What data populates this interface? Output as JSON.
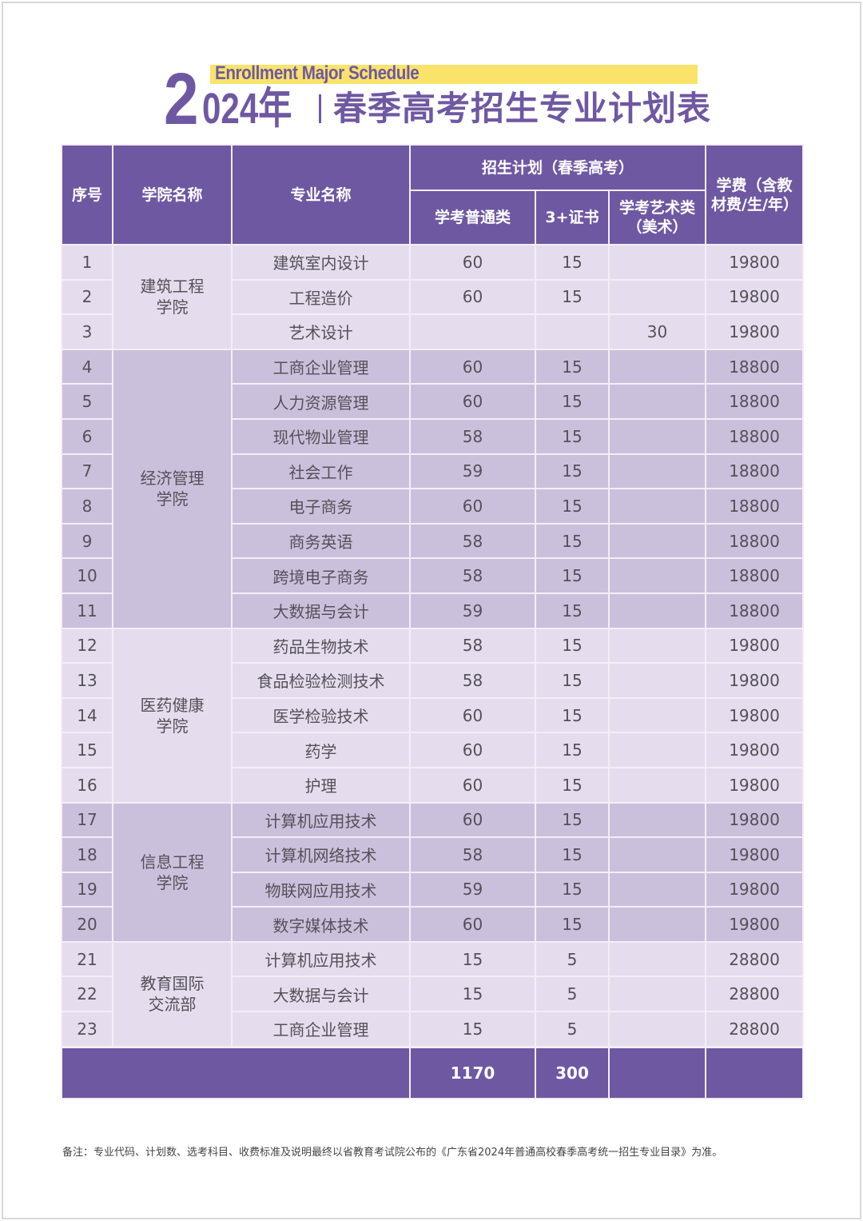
{
  "title": {
    "english": "Enrollment Major Schedule",
    "year_first_digit": "2",
    "year_rest": "024年",
    "chinese": "春季高考招生专业计划表"
  },
  "colors": {
    "primary_purple": "#6f58a2",
    "light_row": "#e5dded",
    "dark_row": "#cbc0dc",
    "yellow_bar": "#f9e36a"
  },
  "table": {
    "headers": {
      "index": "序号",
      "college": "学院名称",
      "major": "专业名称",
      "plan_group": "招生计划（春季高考）",
      "regular": "学考普通类",
      "cert": "3+证书",
      "art": "学考艺术类（美术）",
      "tuition": "学费（含教材费/生/年）"
    },
    "colleges": [
      {
        "name": "建筑工程学院",
        "rows": [
          {
            "no": "1",
            "major": "建筑室内设计",
            "regular": "60",
            "cert": "15",
            "art": "",
            "tuition": "19800"
          },
          {
            "no": "2",
            "major": "工程造价",
            "regular": "60",
            "cert": "15",
            "art": "",
            "tuition": "19800"
          },
          {
            "no": "3",
            "major": "艺术设计",
            "regular": "",
            "cert": "",
            "art": "30",
            "tuition": "19800"
          }
        ]
      },
      {
        "name": "经济管理学院",
        "rows": [
          {
            "no": "4",
            "major": "工商企业管理",
            "regular": "60",
            "cert": "15",
            "art": "",
            "tuition": "18800"
          },
          {
            "no": "5",
            "major": "人力资源管理",
            "regular": "60",
            "cert": "15",
            "art": "",
            "tuition": "18800"
          },
          {
            "no": "6",
            "major": "现代物业管理",
            "regular": "58",
            "cert": "15",
            "art": "",
            "tuition": "18800"
          },
          {
            "no": "7",
            "major": "社会工作",
            "regular": "59",
            "cert": "15",
            "art": "",
            "tuition": "18800"
          },
          {
            "no": "8",
            "major": "电子商务",
            "regular": "60",
            "cert": "15",
            "art": "",
            "tuition": "18800"
          },
          {
            "no": "9",
            "major": "商务英语",
            "regular": "58",
            "cert": "15",
            "art": "",
            "tuition": "18800"
          },
          {
            "no": "10",
            "major": "跨境电子商务",
            "regular": "58",
            "cert": "15",
            "art": "",
            "tuition": "18800"
          },
          {
            "no": "11",
            "major": "大数据与会计",
            "regular": "59",
            "cert": "15",
            "art": "",
            "tuition": "18800"
          }
        ]
      },
      {
        "name": "医药健康学院",
        "rows": [
          {
            "no": "12",
            "major": "药品生物技术",
            "regular": "58",
            "cert": "15",
            "art": "",
            "tuition": "19800"
          },
          {
            "no": "13",
            "major": "食品检验检测技术",
            "regular": "58",
            "cert": "15",
            "art": "",
            "tuition": "19800"
          },
          {
            "no": "14",
            "major": "医学检验技术",
            "regular": "60",
            "cert": "15",
            "art": "",
            "tuition": "19800"
          },
          {
            "no": "15",
            "major": "药学",
            "regular": "60",
            "cert": "15",
            "art": "",
            "tuition": "19800"
          },
          {
            "no": "16",
            "major": "护理",
            "regular": "60",
            "cert": "15",
            "art": "",
            "tuition": "19800"
          }
        ]
      },
      {
        "name": "信息工程学院",
        "rows": [
          {
            "no": "17",
            "major": "计算机应用技术",
            "regular": "60",
            "cert": "15",
            "art": "",
            "tuition": "19800"
          },
          {
            "no": "18",
            "major": "计算机网络技术",
            "regular": "58",
            "cert": "15",
            "art": "",
            "tuition": "19800"
          },
          {
            "no": "19",
            "major": "物联网应用技术",
            "regular": "59",
            "cert": "15",
            "art": "",
            "tuition": "19800"
          },
          {
            "no": "20",
            "major": "数字媒体技术",
            "regular": "60",
            "cert": "15",
            "art": "",
            "tuition": "19800"
          }
        ]
      },
      {
        "name": "教育国际交流部",
        "rows": [
          {
            "no": "21",
            "major": "计算机应用技术",
            "regular": "15",
            "cert": "5",
            "art": "",
            "tuition": "28800"
          },
          {
            "no": "22",
            "major": "大数据与会计",
            "regular": "15",
            "cert": "5",
            "art": "",
            "tuition": "28800"
          },
          {
            "no": "23",
            "major": "工商企业管理",
            "regular": "15",
            "cert": "5",
            "art": "",
            "tuition": "28800"
          }
        ]
      }
    ],
    "totals": {
      "label": "",
      "regular": "1170",
      "cert": "300",
      "art": "",
      "tuition": ""
    }
  },
  "note": "备注：专业代码、计划数、选考科目、收费标准及说明最终以省教育考试院公布的《广东省2024年普通高校春季高考统一招生专业目录》为准。"
}
